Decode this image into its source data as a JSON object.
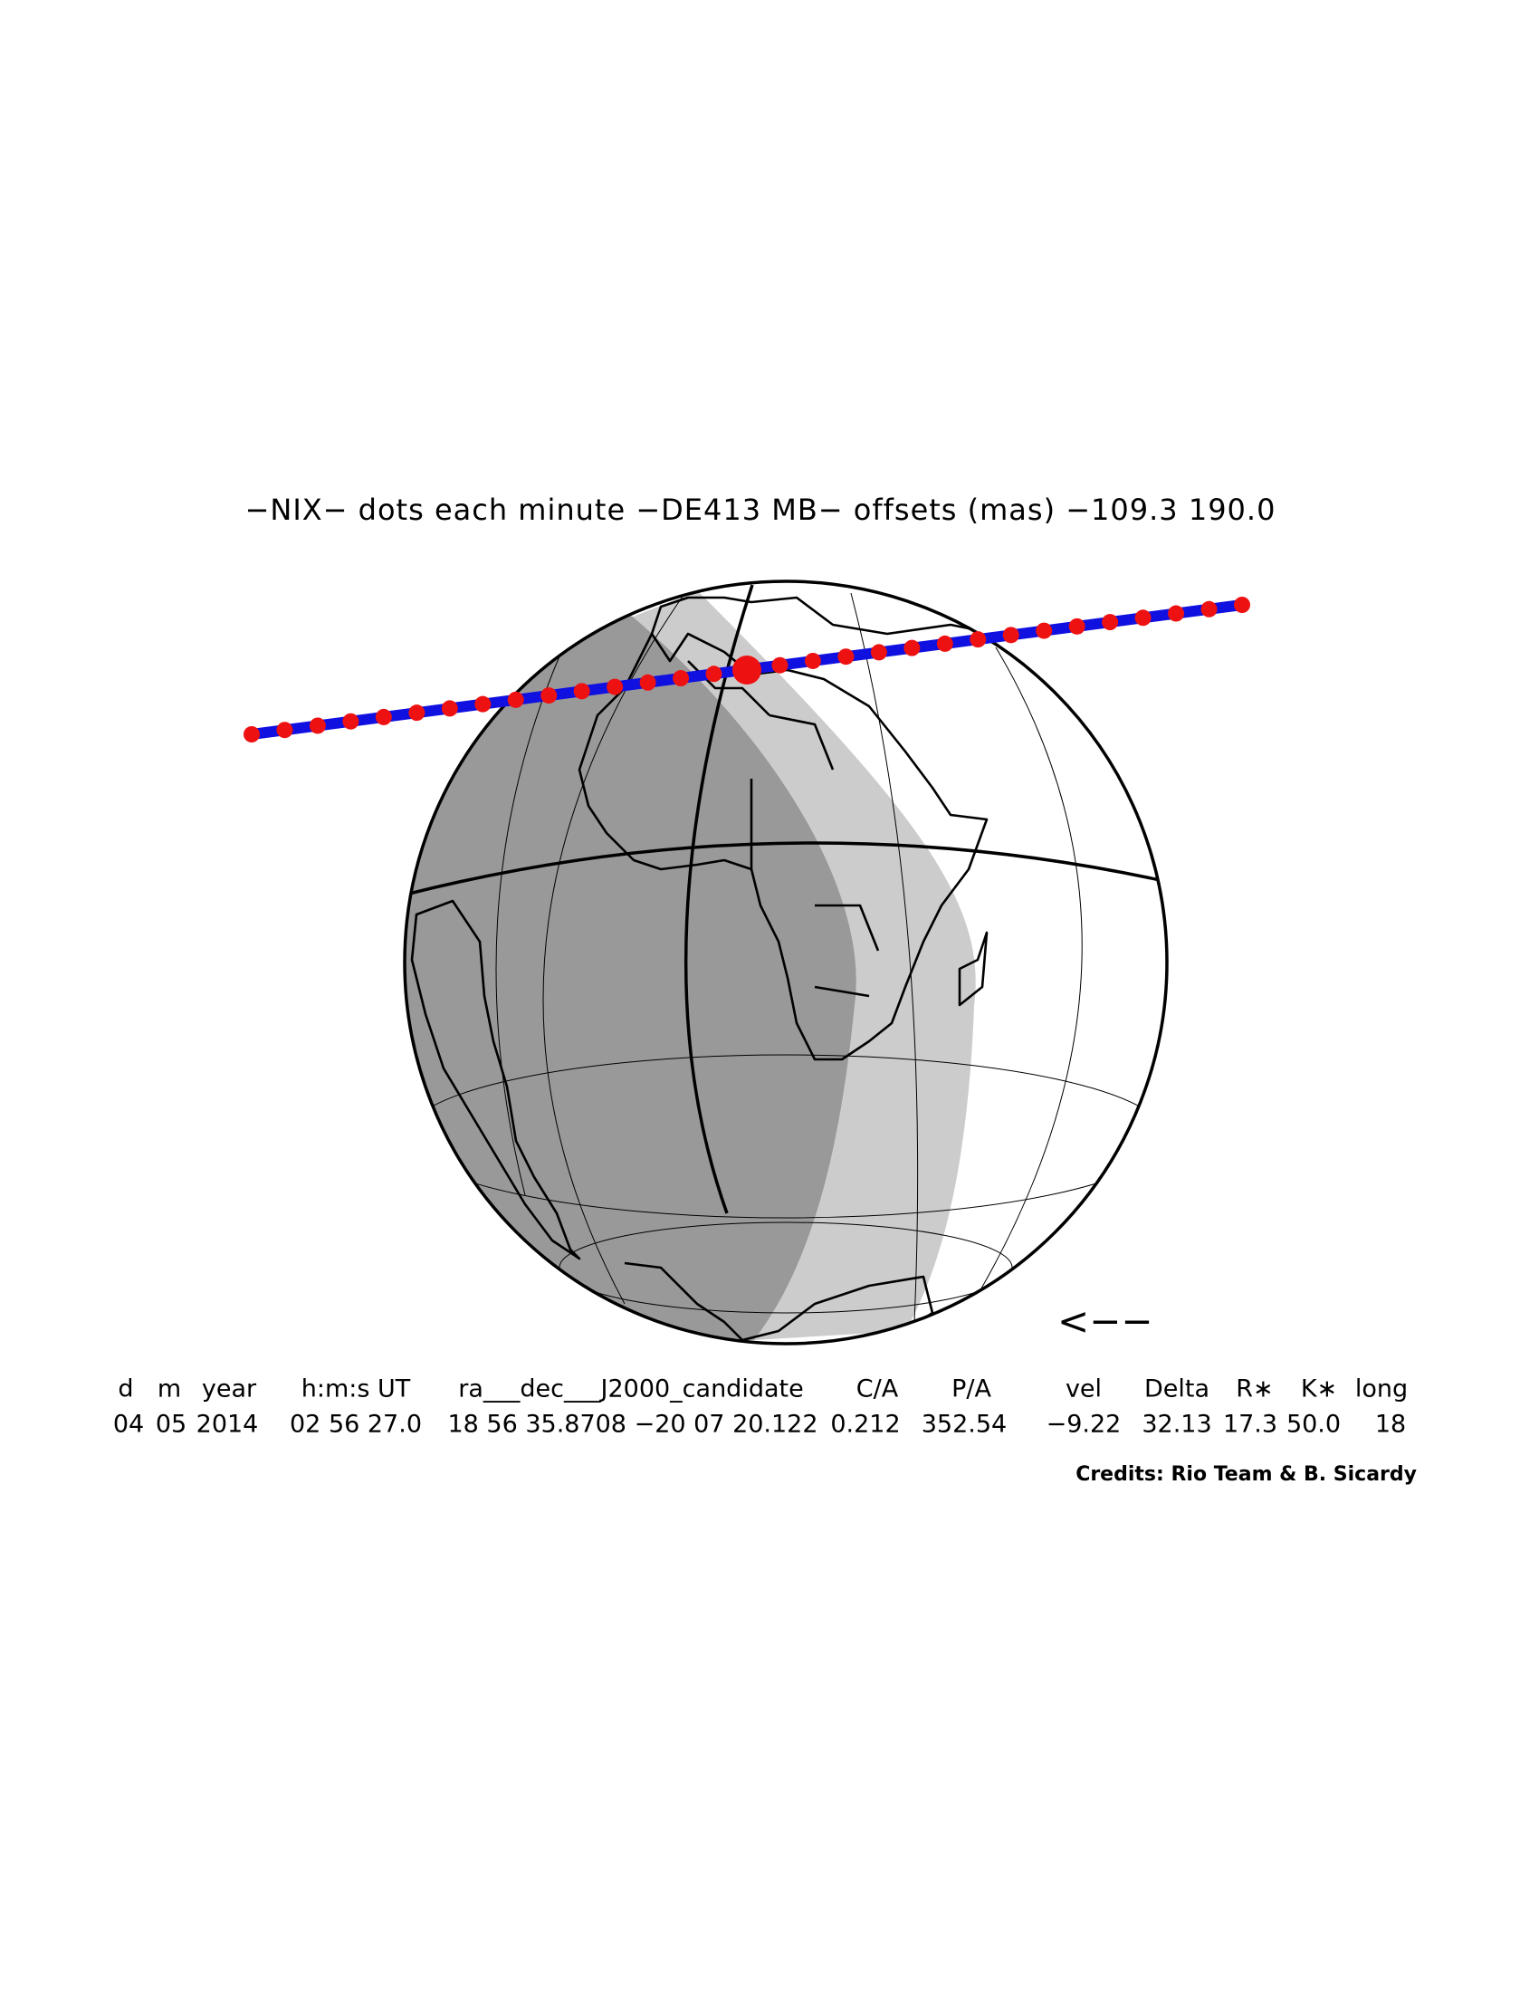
{
  "title": "−NIX− dots each minute −DE413 MB− offsets (mas) −109.3   190.0",
  "direction_arrow": "<−−",
  "table": {
    "headers": [
      "d",
      "m",
      "year",
      "h:m:s UT",
      "ra___dec___J2000_candidate",
      "C/A",
      "P/A",
      "vel",
      "Delta",
      "R∗",
      "K∗",
      "long"
    ],
    "values": [
      "04",
      "05",
      "2014",
      "02 56 27.0",
      "18 56 35.8708 −20 07 20.122",
      "0.212",
      "352.54",
      "−9.22",
      "32.13",
      "17.3",
      "50.0",
      "18"
    ]
  },
  "credits": "Credits: Rio Team & B. Sicardy"
}
